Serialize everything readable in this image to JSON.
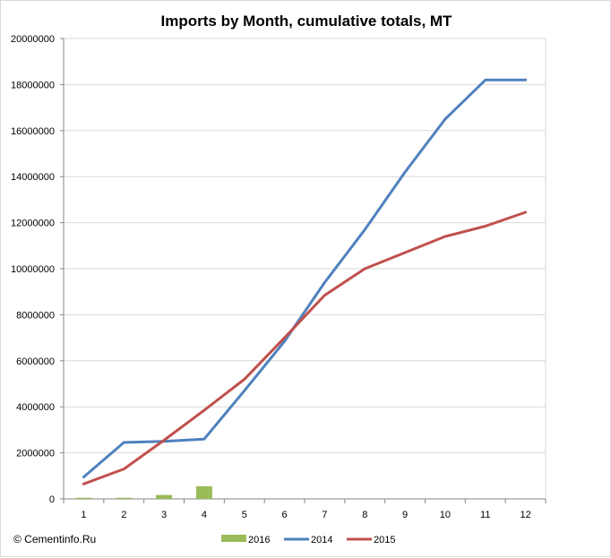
{
  "chart_data": {
    "type": "line",
    "title": "Imports by Month, cumulative totals, MT",
    "xlabel": "",
    "ylabel": "",
    "categories": [
      "1",
      "2",
      "3",
      "4",
      "5",
      "6",
      "7",
      "8",
      "9",
      "10",
      "11",
      "12"
    ],
    "ylim": [
      0,
      20000000
    ],
    "y_ticks": [
      "0",
      "2000000",
      "4000000",
      "6000000",
      "8000000",
      "10000000",
      "12000000",
      "14000000",
      "16000000",
      "18000000",
      "20000000"
    ],
    "grid": "horizontal",
    "legend_position": "bottom",
    "series": [
      {
        "name": "2016",
        "type": "bar",
        "color": "#9bbb59",
        "values": [
          50000,
          50000,
          170000,
          550000,
          null,
          null,
          null,
          null,
          null,
          null,
          null,
          null
        ]
      },
      {
        "name": "2014",
        "type": "line",
        "color": "#4f81bd",
        "values": [
          950000,
          2450000,
          2500000,
          2600000,
          4700000,
          6850000,
          9400000,
          11700000,
          14200000,
          16500000,
          18200000,
          18200000
        ]
      },
      {
        "name": "2015",
        "type": "line",
        "color": "#c0504d",
        "values": [
          650000,
          1300000,
          2550000,
          3850000,
          5200000,
          7000000,
          8850000,
          10000000,
          10700000,
          11400000,
          11850000,
          12450000
        ]
      }
    ]
  },
  "copyright": "© Cementinfo.Ru"
}
